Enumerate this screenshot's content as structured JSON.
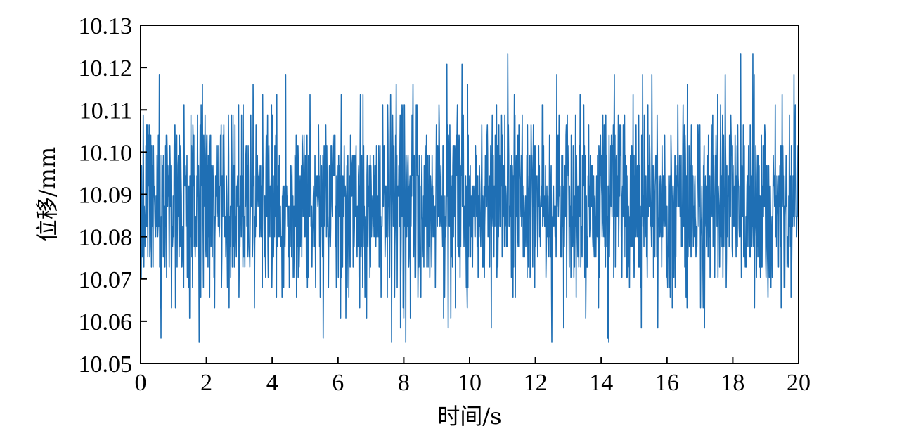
{
  "chart_data": {
    "type": "line",
    "title": "",
    "xlabel": "时间/s",
    "ylabel": "位移/mm",
    "xlim": [
      0,
      20
    ],
    "ylim": [
      10.05,
      10.13
    ],
    "x_ticks": [
      "0",
      "2",
      "4",
      "6",
      "8",
      "10",
      "12",
      "14",
      "16",
      "18",
      "20"
    ],
    "y_ticks": [
      "10.05",
      "10.06",
      "10.07",
      "10.08",
      "10.09",
      "10.10",
      "10.11",
      "10.12",
      "10.13"
    ],
    "grid": false,
    "legend": "none",
    "series": [
      {
        "color": "#1f6fb4",
        "sample_rate_hz": 100,
        "mean": 10.088,
        "min": 10.055,
        "max": 10.128,
        "quantization_step": 0.0024,
        "x_start": 0,
        "x_end": 20,
        "noise": "random"
      }
    ]
  }
}
